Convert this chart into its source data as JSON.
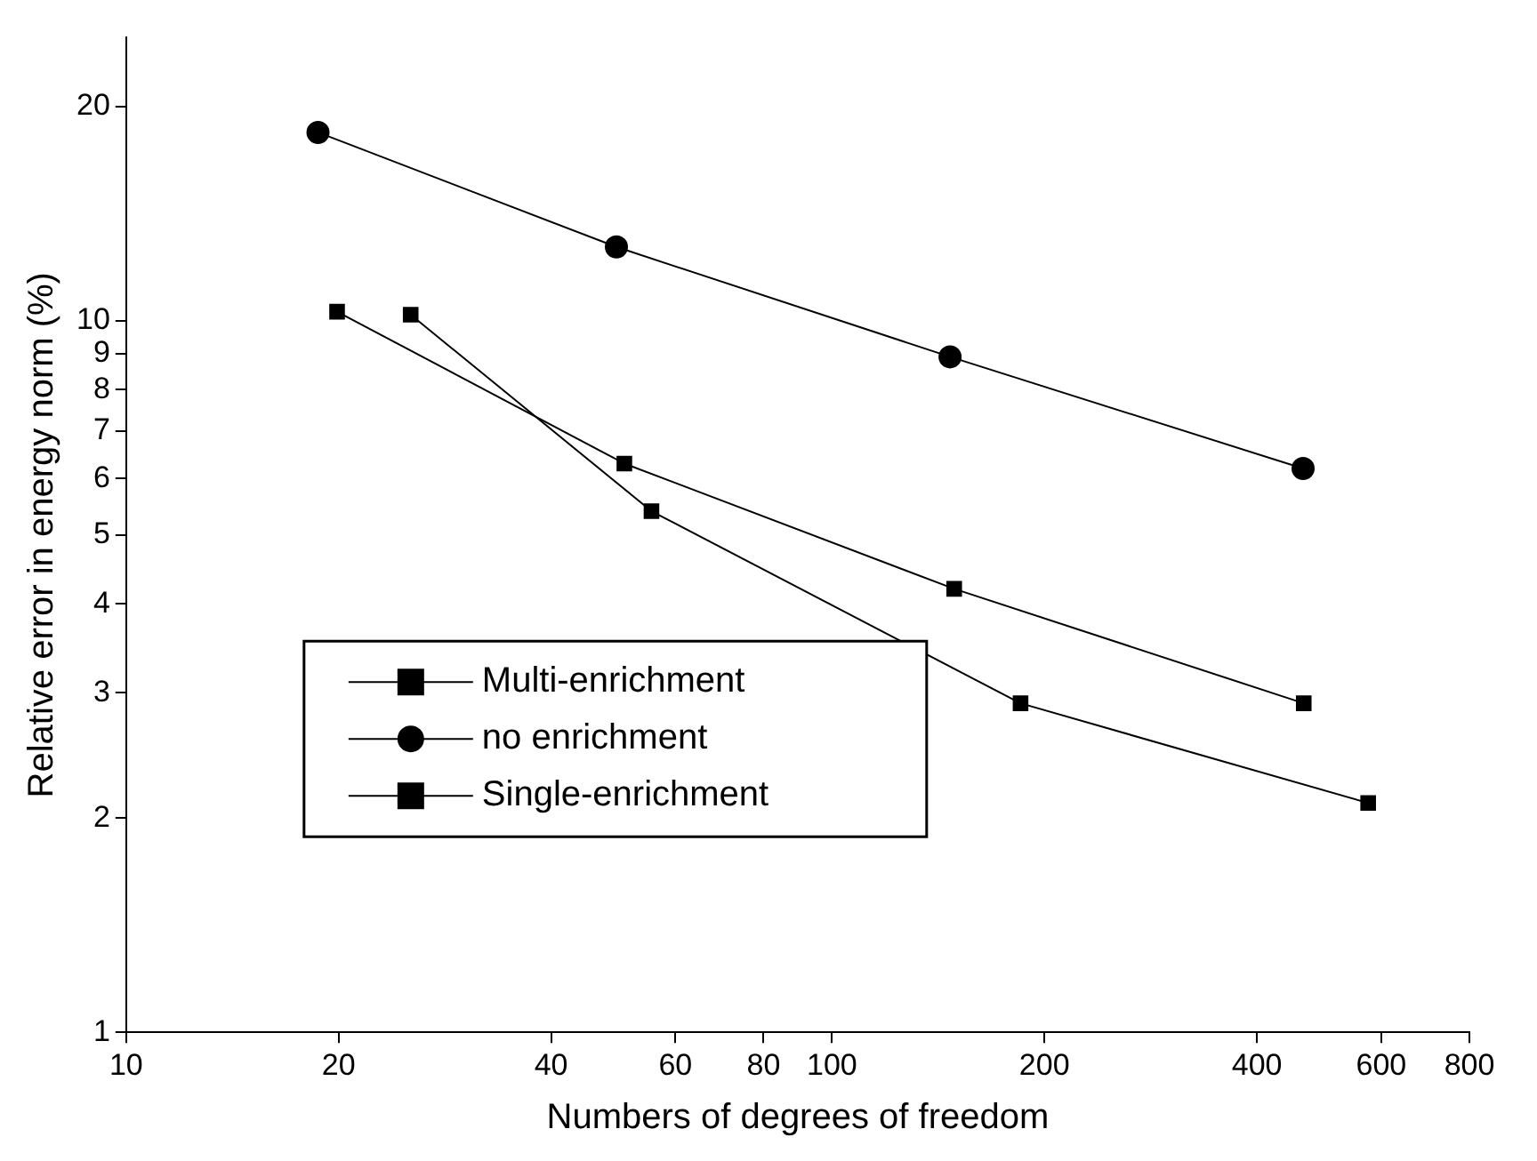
{
  "chart_data": {
    "type": "line",
    "xlabel": "Numbers of degrees of freedom",
    "ylabel": "Relative error in energy norm (%)",
    "log": "xy",
    "grid": false,
    "legend": "bottom left",
    "line_style": "solid",
    "xlim": [
      10,
      800
    ],
    "xticks": [
      10,
      20,
      40,
      60,
      80,
      100,
      200,
      400,
      600,
      800
    ],
    "ylim": [
      1,
      25
    ],
    "yticks": [
      1,
      2,
      3,
      4,
      5,
      6,
      7,
      8,
      9,
      10,
      20
    ],
    "series": [
      {
        "name": "Multi-enrichment",
        "color": "#000000",
        "marker": "square",
        "x": [
          25.3,
          55.5,
          185,
          575
        ],
        "values": [
          10.2,
          5.4,
          2.9,
          2.1
        ]
      },
      {
        "name": "no enrichment",
        "color": "#000000",
        "marker": "circle",
        "x": [
          18.7,
          49.5,
          147,
          465
        ],
        "values": [
          18.4,
          12.7,
          8.9,
          6.2
        ]
      },
      {
        "name": "Single-enrichment",
        "color": "#000000",
        "marker": "square",
        "x": [
          19.9,
          50.8,
          149,
          466
        ],
        "values": [
          10.3,
          6.3,
          4.2,
          2.9
        ]
      }
    ]
  }
}
